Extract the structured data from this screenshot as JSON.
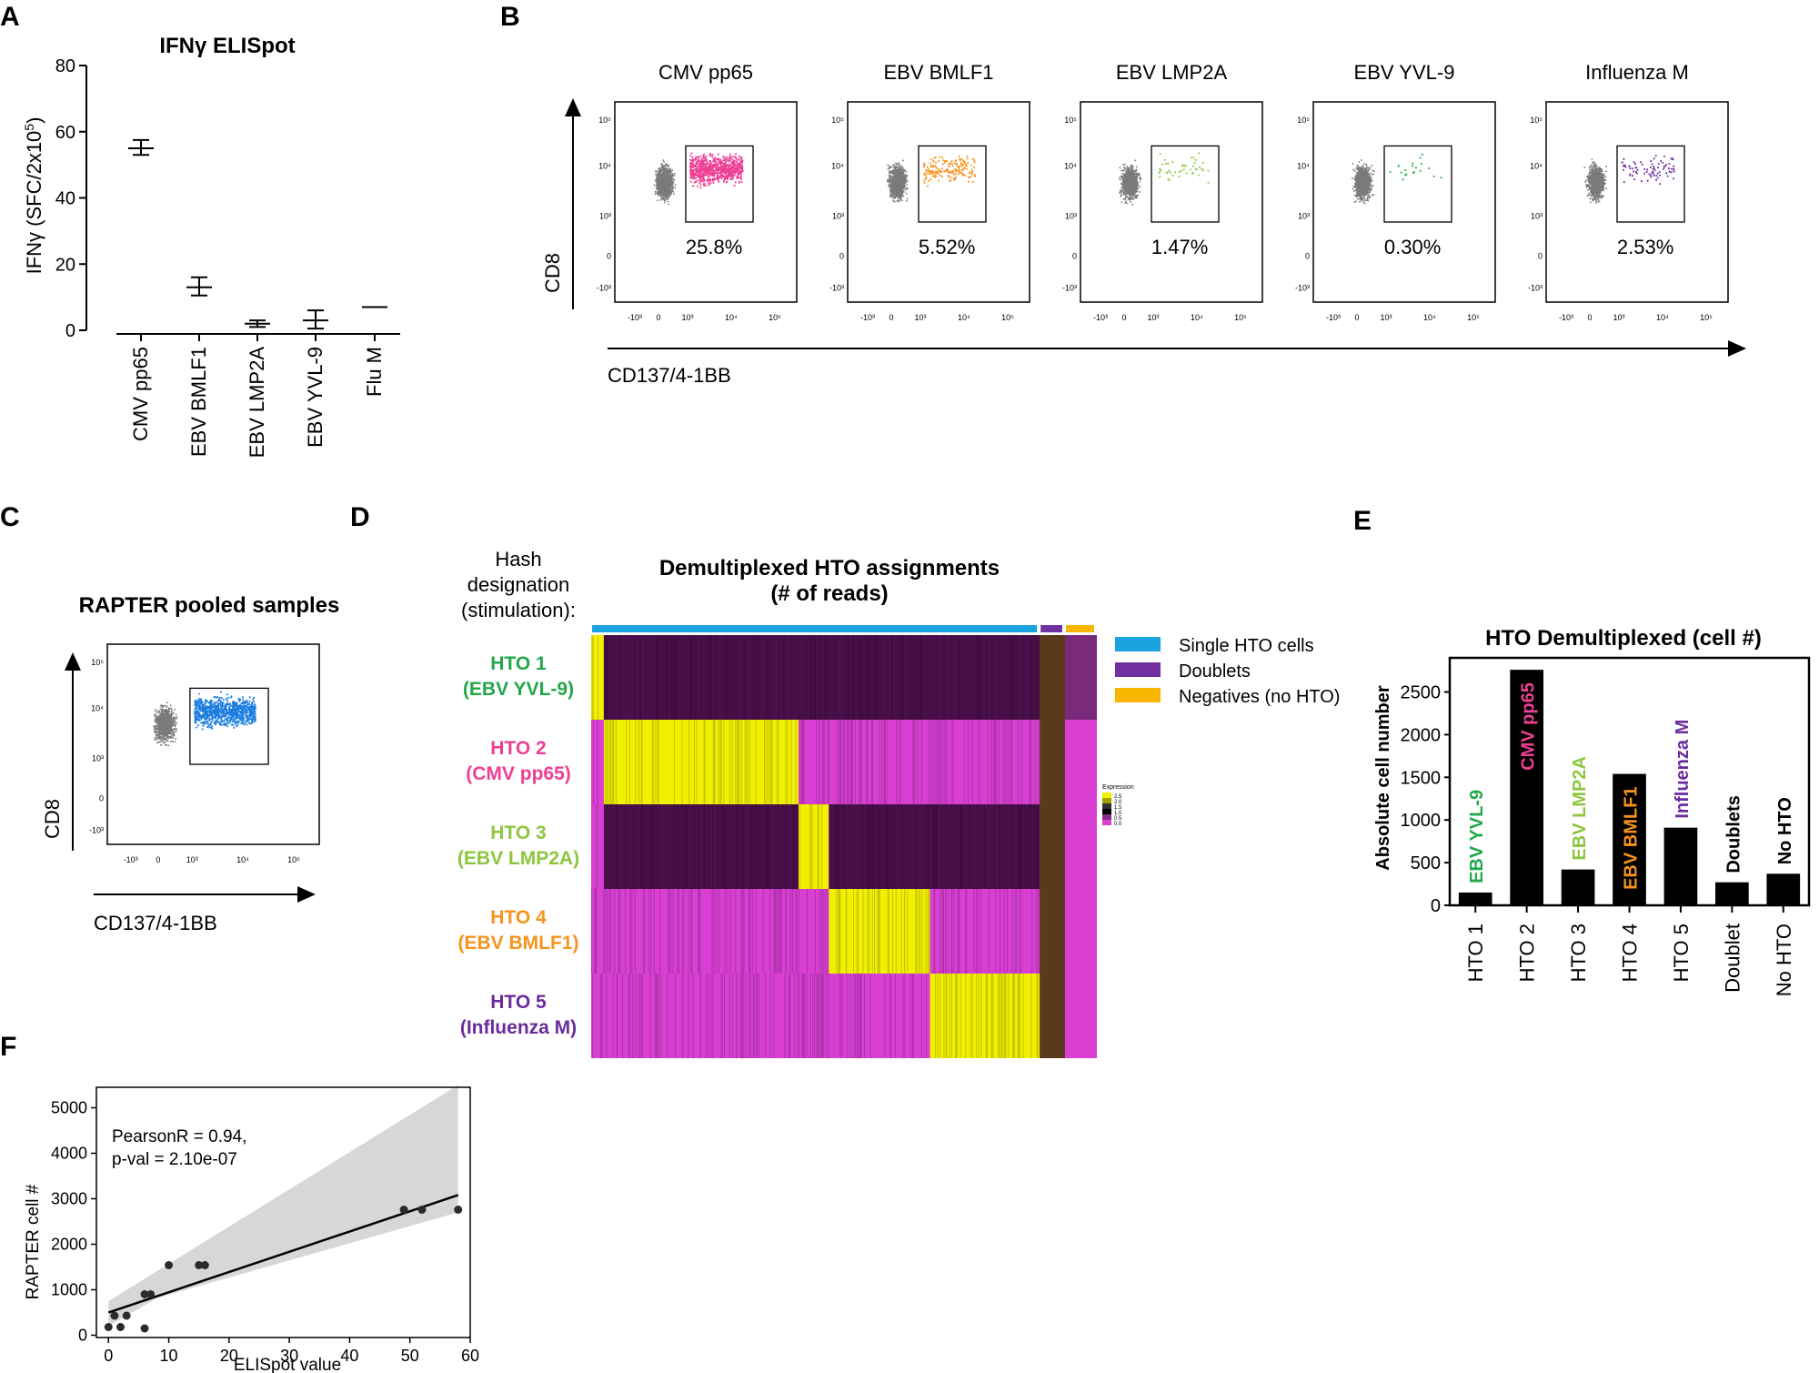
{
  "panel_labels": [
    "A",
    "B",
    "C",
    "D",
    "E",
    "F"
  ],
  "colors": {
    "cmv": "#ee3f94",
    "ebv_bmlf1": "#f7931e",
    "ebv_lmp2a": "#8dc63f",
    "ebv_yvl9": "#22a84a",
    "flu": "#6b2c9e",
    "single": "#1ba3e0",
    "doublet": "#7030a0",
    "negative": "#f7b500",
    "heat_low": "#d83fd2",
    "heat_mid": "#4a0f4a",
    "heat_high": "#f2f000",
    "hto5_label": "#6a2b9d"
  },
  "chart_data": [
    {
      "id": "A",
      "type": "scatter",
      "title": "IFNγ ELISpot",
      "ylabel": "IFNγ (SFC/2x10",
      "ylabel_sup": "5",
      "ylabel_close": ")",
      "categories": [
        "CMV pp65",
        "EBV BMLF1",
        "EBV LMP2A",
        "EBV YVL-9",
        "Flu M"
      ],
      "mean": [
        55,
        13,
        2,
        3,
        7
      ],
      "err_low": [
        53,
        10.5,
        1,
        0.5,
        7
      ],
      "err_high": [
        57.5,
        16,
        3,
        6,
        7
      ],
      "ylim": [
        0,
        80
      ],
      "yticks": [
        "0",
        "20",
        "40",
        "60",
        "80"
      ]
    },
    {
      "id": "B",
      "type": "scatter",
      "subtype": "flow-cytometry",
      "ylabel": "CD8",
      "xlabel": "CD137/4-1BB",
      "panels": [
        {
          "title": "CMV pp65",
          "percent": "25.8%",
          "color": "#ee3f94",
          "fraction": 0.258
        },
        {
          "title": "EBV BMLF1",
          "percent": "5.52%",
          "color": "#f7931e",
          "fraction": 0.0552
        },
        {
          "title": "EBV LMP2A",
          "percent": "1.47%",
          "color": "#8dc63f",
          "fraction": 0.0147
        },
        {
          "title": "EBV YVL-9",
          "percent": "0.30%",
          "color": "#22a84a",
          "fraction": 0.003
        },
        {
          "title": "Influenza M",
          "percent": "2.53%",
          "color": "#6b2c9e",
          "fraction": 0.0253
        }
      ],
      "yticks": [
        "10⁵",
        "10⁴",
        "10³",
        "0",
        "-10³"
      ],
      "xticks": [
        "-10³",
        "0",
        "10³",
        "10⁴",
        "10⁵"
      ]
    },
    {
      "id": "C",
      "type": "scatter",
      "subtype": "flow-cytometry",
      "title": "RAPTER pooled samples",
      "ylabel": "CD8",
      "xlabel": "CD137/4-1BB",
      "color": "#1a7de0",
      "yticks": [
        "10⁵",
        "10⁴",
        "10³",
        "0",
        "-10³"
      ],
      "xticks": [
        "-10³",
        "0",
        "10³",
        "10⁴",
        "10⁵"
      ]
    },
    {
      "id": "D",
      "type": "heatmap",
      "title_line1": "Demultiplexed HTO assignments",
      "title_line2": "(# of reads)",
      "row_header": [
        "Hash",
        "designation",
        "(stimulation):"
      ],
      "rows": [
        {
          "hto": "HTO 1",
          "stim": "(EBV YVL-9)",
          "color": "#22a84a"
        },
        {
          "hto": "HTO 2",
          "stim": "(CMV pp65)",
          "color": "#ee3f94"
        },
        {
          "hto": "HTO 3",
          "stim": "(EBV LMP2A)",
          "color": "#8dc63f"
        },
        {
          "hto": "HTO 4",
          "stim": "(EBV BMLF1)",
          "color": "#f7931e"
        },
        {
          "hto": "HTO 5",
          "stim": "(Influenza M)",
          "color": "#6a2b9d"
        }
      ],
      "column_groups": [
        {
          "name": "Single HTO cells",
          "color": "#1ba3e0",
          "share": 0.887
        },
        {
          "name": "Doublets",
          "color": "#7030a0",
          "share": 0.05
        },
        {
          "name": "Negatives (no HTO)",
          "color": "#f7b500",
          "share": 0.063
        }
      ],
      "legend": [
        "Single HTO cells",
        "Doublets",
        "Negatives (no HTO)"
      ],
      "colorbar": {
        "title": "Expression",
        "ticks": [
          "2.5",
          "2.0",
          "1.5",
          "1.0",
          "0.5",
          "0.0"
        ]
      }
    },
    {
      "id": "E",
      "type": "bar",
      "title": "HTO Demultiplexed (cell #)",
      "ylabel": "Absolute cell number",
      "categories": [
        "HTO 1",
        "HTO 2",
        "HTO 3",
        "HTO 4",
        "HTO 5",
        "Doublet",
        "No HTO"
      ],
      "values": [
        150,
        2760,
        420,
        1540,
        910,
        270,
        370
      ],
      "bar_labels": [
        "EBV YVL-9",
        "CMV pp65",
        "EBV LMP2A",
        "EBV BMLF1",
        "Influenza M",
        "Doublets",
        "No HTO"
      ],
      "bar_label_colors": [
        "#22a84a",
        "#ee3f94",
        "#8dc63f",
        "#f7931e",
        "#6b2c9e",
        "#000000",
        "#000000"
      ],
      "ylim": [
        0,
        2900
      ],
      "yticks": [
        "0",
        "500",
        "1000",
        "1500",
        "2000",
        "2500"
      ]
    },
    {
      "id": "F",
      "type": "scatter",
      "xlabel": "ELISpot value",
      "ylabel": "RAPTER cell #",
      "annotation_line1": "PearsonR = 0.94,",
      "annotation_line2": "p-val = 2.10e-07",
      "points": [
        [
          0,
          180
        ],
        [
          1,
          430
        ],
        [
          2,
          180
        ],
        [
          3,
          430
        ],
        [
          6,
          150
        ],
        [
          6,
          900
        ],
        [
          7,
          900
        ],
        [
          10,
          1540
        ],
        [
          15,
          1540
        ],
        [
          16,
          1540
        ],
        [
          49,
          2760
        ],
        [
          52,
          2760
        ],
        [
          58,
          2760
        ]
      ],
      "fit": {
        "slope": 44.5,
        "intercept": 500
      },
      "ci_upper_at_end": 5500,
      "ci_lower_at_end": 2700,
      "xlim": [
        -2,
        60
      ],
      "ylim": [
        -50,
        5450
      ],
      "xticks": [
        "0",
        "10",
        "20",
        "30",
        "40",
        "50",
        "60"
      ],
      "yticks": [
        "0",
        "1000",
        "2000",
        "3000",
        "4000",
        "5000"
      ]
    }
  ]
}
